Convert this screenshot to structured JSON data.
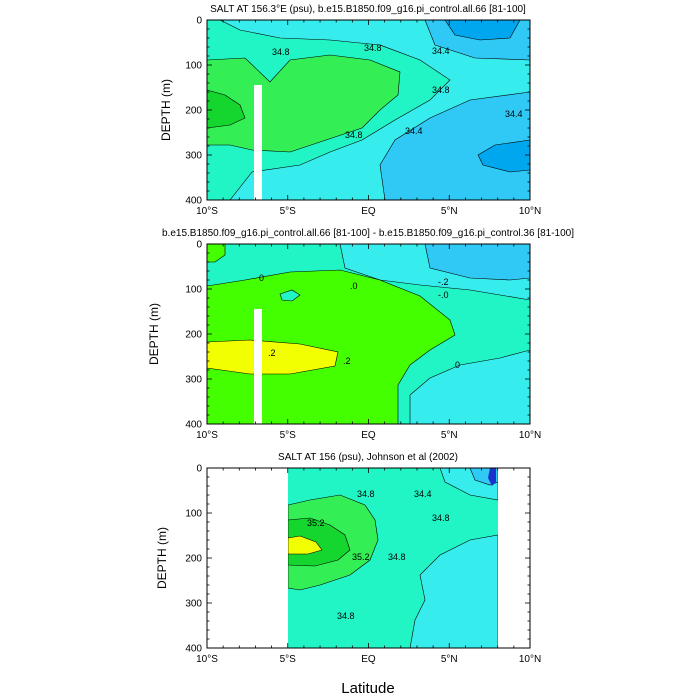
{
  "figure": {
    "xlabel": "Latitude"
  },
  "colors": {
    "c_lo2": "#00a7ee",
    "c_lo1": "#30c8f5",
    "c_mid": "#37ecec",
    "c_teal": "#22f5c5",
    "c_green": "#33ee55",
    "c_green2": "#44ff00",
    "c_dgreen": "#15d62e",
    "c_yellow": "#f2ff00",
    "c_navy": "#1a33cc"
  },
  "chart_data": [
    {
      "type": "contour",
      "title": "SALT AT 156.3°E (psu), b.e15.B1850.f09_g16.pi_control.all.66 [81-100]",
      "ylabel": "DEPTH (m)",
      "xlim": [
        -10,
        10
      ],
      "ylim": [
        400,
        0
      ],
      "xticks": [
        "10°S",
        "5°S",
        "EQ",
        "5°N",
        "10°N"
      ],
      "yticks": [
        "0",
        "100",
        "200",
        "300",
        "400"
      ],
      "contour_labels": [
        "34.8",
        "34.8",
        "34.4",
        "34.8",
        "34.8",
        "34.4",
        "34.4"
      ]
    },
    {
      "type": "contour",
      "title": "b.e15.B1850.f09_g16.pi_control.all.66 [81-100] - b.e15.B1850.f09_g16.pi_control.36 [81-100]",
      "ylabel": "DEPTH (m)",
      "xlim": [
        -10,
        10
      ],
      "ylim": [
        400,
        0
      ],
      "xticks": [
        "10°S",
        "5°S",
        "EQ",
        "5°N",
        "10°N"
      ],
      "yticks": [
        "0",
        "100",
        "200",
        "300",
        "400"
      ],
      "contour_labels": [
        "0",
        ".0",
        "-.2",
        "-.0",
        ".2",
        ".2",
        "0"
      ]
    },
    {
      "type": "contour",
      "title": "SALT AT 156 (psu), Johnson et al (2002)",
      "ylabel": "DEPTH (m)",
      "xlim": [
        -10,
        10
      ],
      "ylim": [
        400,
        0
      ],
      "xticks": [
        "10°S",
        "5°S",
        "EQ",
        "5°N",
        "10°N"
      ],
      "yticks": [
        "0",
        "100",
        "200",
        "300",
        "400"
      ],
      "contour_labels": [
        "34.8",
        "34.4",
        "35.2",
        "34.8",
        "35.2",
        "34.8",
        "34.8"
      ]
    }
  ]
}
